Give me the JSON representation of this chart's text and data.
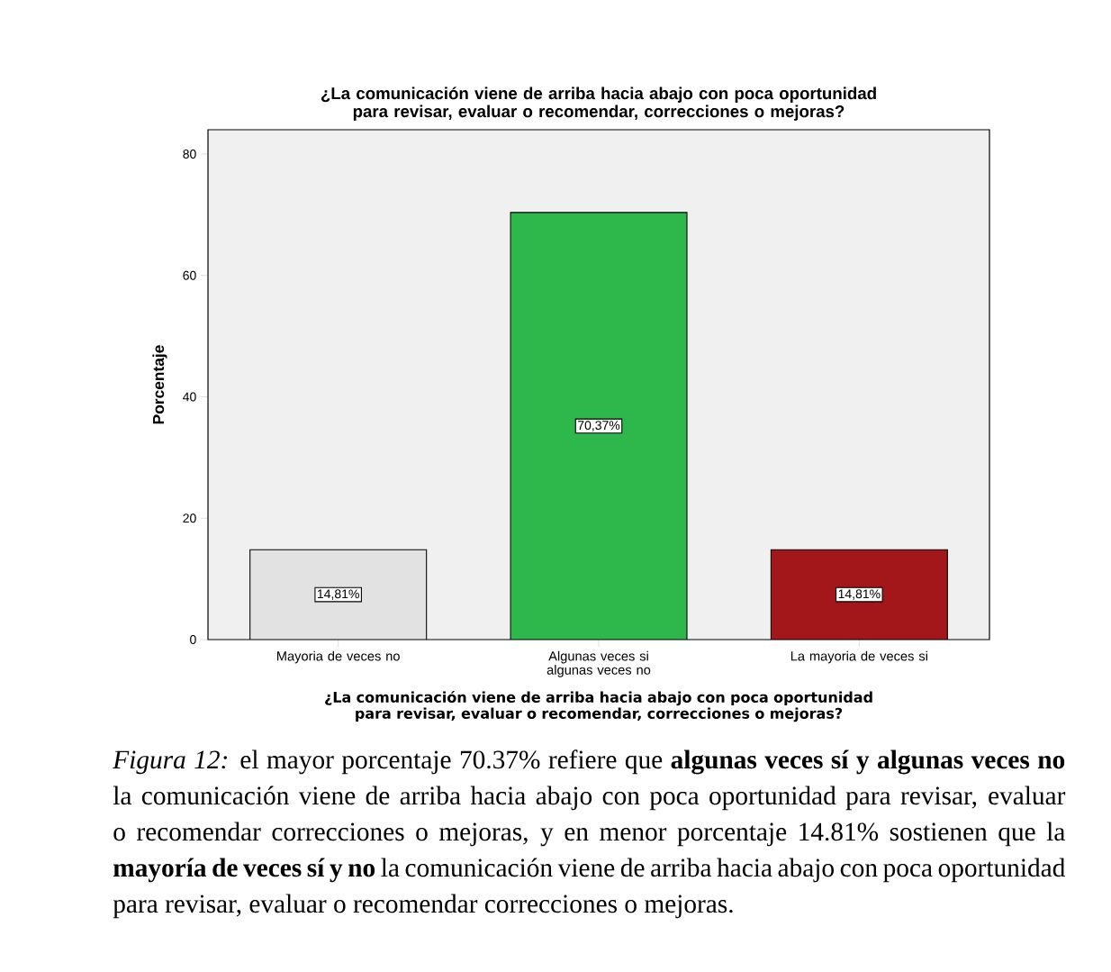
{
  "chart_data": {
    "type": "bar",
    "title": "¿La comunicación viene de arriba hacia abajo con poca oportunidad para revisar, evaluar o recomendar, correcciones o mejoras?",
    "xlabel": "¿La comunicación viene de arriba hacia abajo con poca oportunidad para revisar, evaluar o recomendar, correcciones o mejoras?",
    "ylabel": "Porcentaje",
    "categories": [
      "Mayoria de veces no",
      "Algunas veces si algunas veces no",
      "La mayoria de veces si"
    ],
    "values": [
      14.81,
      70.37,
      14.81
    ],
    "colors": [
      "#e2e2e2",
      "#2eb84b",
      "#a3171b"
    ],
    "value_labels": [
      "14,81%",
      "70,37%",
      "14,81%"
    ],
    "ylim": [
      0,
      84
    ],
    "yticks": [
      0,
      20,
      40,
      60,
      80
    ],
    "grid": false,
    "annotations": [
      "*Figura 12:* el mayor porcentaje 70.37% refiere que **algunas veces sí y algunas veces no** la comunicación viene de arriba hacia abajo con poca oportunidad para revisar, evaluar o recomendar correcciones o mejoras, y en menor porcentaje 14.81% sostienen que la **mayoría de veces sí y no** la comunicación viene de arriba hacia abajo con poca oportunidad para revisar, evaluar o recomendar correcciones o mejoras."
    ]
  }
}
